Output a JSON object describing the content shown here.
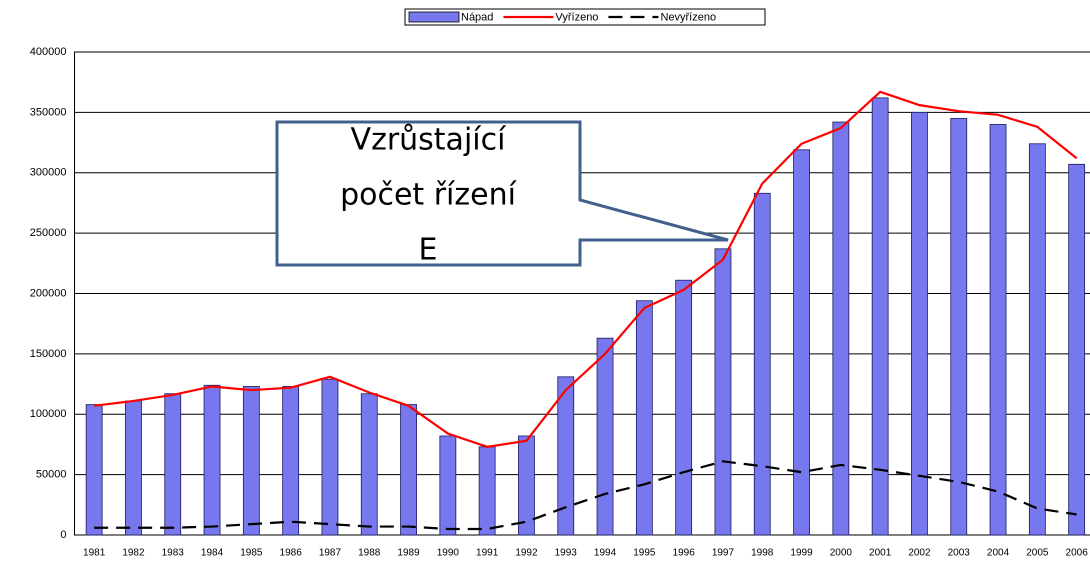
{
  "chart_data": {
    "type": "bar_line",
    "categories": [
      "1981",
      "1982",
      "1983",
      "1984",
      "1985",
      "1986",
      "1987",
      "1988",
      "1989",
      "1990",
      "1991",
      "1992",
      "1993",
      "1994",
      "1995",
      "1996",
      "1997",
      "1998",
      "1999",
      "2000",
      "2001",
      "2002",
      "2003",
      "2004",
      "2005",
      "2006"
    ],
    "series": [
      {
        "name": "Nápad",
        "type": "bar",
        "color": "#7878ee",
        "values": [
          108000,
          111000,
          117000,
          124000,
          123000,
          123000,
          129000,
          117000,
          108000,
          82000,
          73000,
          82000,
          131000,
          163000,
          194000,
          211000,
          237000,
          283000,
          319000,
          342000,
          362000,
          350000,
          345000,
          340000,
          324000,
          307000
        ]
      },
      {
        "name": "Vyřízeno",
        "type": "line",
        "color": "#ff0000",
        "values": [
          107000,
          111000,
          116000,
          123000,
          120000,
          122000,
          131000,
          118000,
          107000,
          84000,
          73000,
          78000,
          120000,
          150000,
          188000,
          203000,
          228000,
          291000,
          324000,
          337000,
          367000,
          356000,
          351000,
          348000,
          338000,
          312000
        ]
      },
      {
        "name": "Nevyřízeno",
        "type": "line",
        "dashed": true,
        "color": "#000000",
        "values": [
          6000,
          6000,
          6000,
          7000,
          9000,
          11000,
          9000,
          7000,
          7000,
          5000,
          5000,
          11000,
          23000,
          34000,
          42000,
          52000,
          61000,
          57000,
          52000,
          58000,
          54000,
          49000,
          44000,
          36000,
          22000,
          17000
        ]
      }
    ],
    "ylim": [
      0,
      400000
    ],
    "yticks": [
      0,
      50000,
      100000,
      150000,
      200000,
      250000,
      300000,
      350000,
      400000
    ],
    "grid": true,
    "legend": "top",
    "annotation": [
      "Vzrůstající",
      "počet řízení",
      "E"
    ]
  }
}
